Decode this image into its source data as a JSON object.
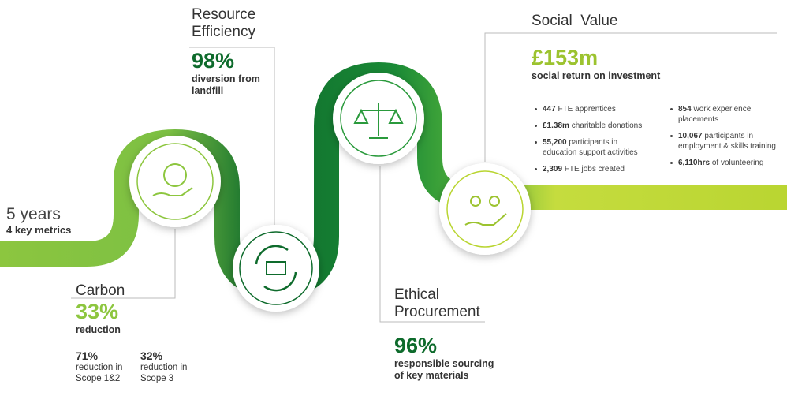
{
  "intro": {
    "title": "5 years",
    "subtitle": "4 key metrics"
  },
  "carbon": {
    "title": "Carbon",
    "headline": "33%",
    "caption": "reduction",
    "details": [
      {
        "value": "71%",
        "label": "reduction in Scope 1&2"
      },
      {
        "value": "32%",
        "label": "reduction in Scope 3"
      }
    ]
  },
  "resource": {
    "title": "Resource Efficiency",
    "headline": "98%",
    "caption": "diversion from landfill"
  },
  "ethical": {
    "title": "Ethical Procurement",
    "headline": "96%",
    "caption": "responsible sourcing of key materials"
  },
  "social": {
    "title": "Social  Value",
    "headline": "£153m",
    "caption": "social return on investment",
    "items_left": [
      {
        "bold": "447",
        "text": "FTE apprentices"
      },
      {
        "bold": "£1.38m",
        "text": "charitable donations"
      },
      {
        "bold": "55,200",
        "text": "participants in education support activities"
      },
      {
        "bold": "2,309",
        "text": "FTE jobs created"
      }
    ],
    "items_right": [
      {
        "bold": "854",
        "text": "work experience placements"
      },
      {
        "bold": "10,067",
        "text": "participants in employment & skills training"
      },
      {
        "bold": "6,110hrs",
        "text": "of volunteering"
      }
    ]
  }
}
